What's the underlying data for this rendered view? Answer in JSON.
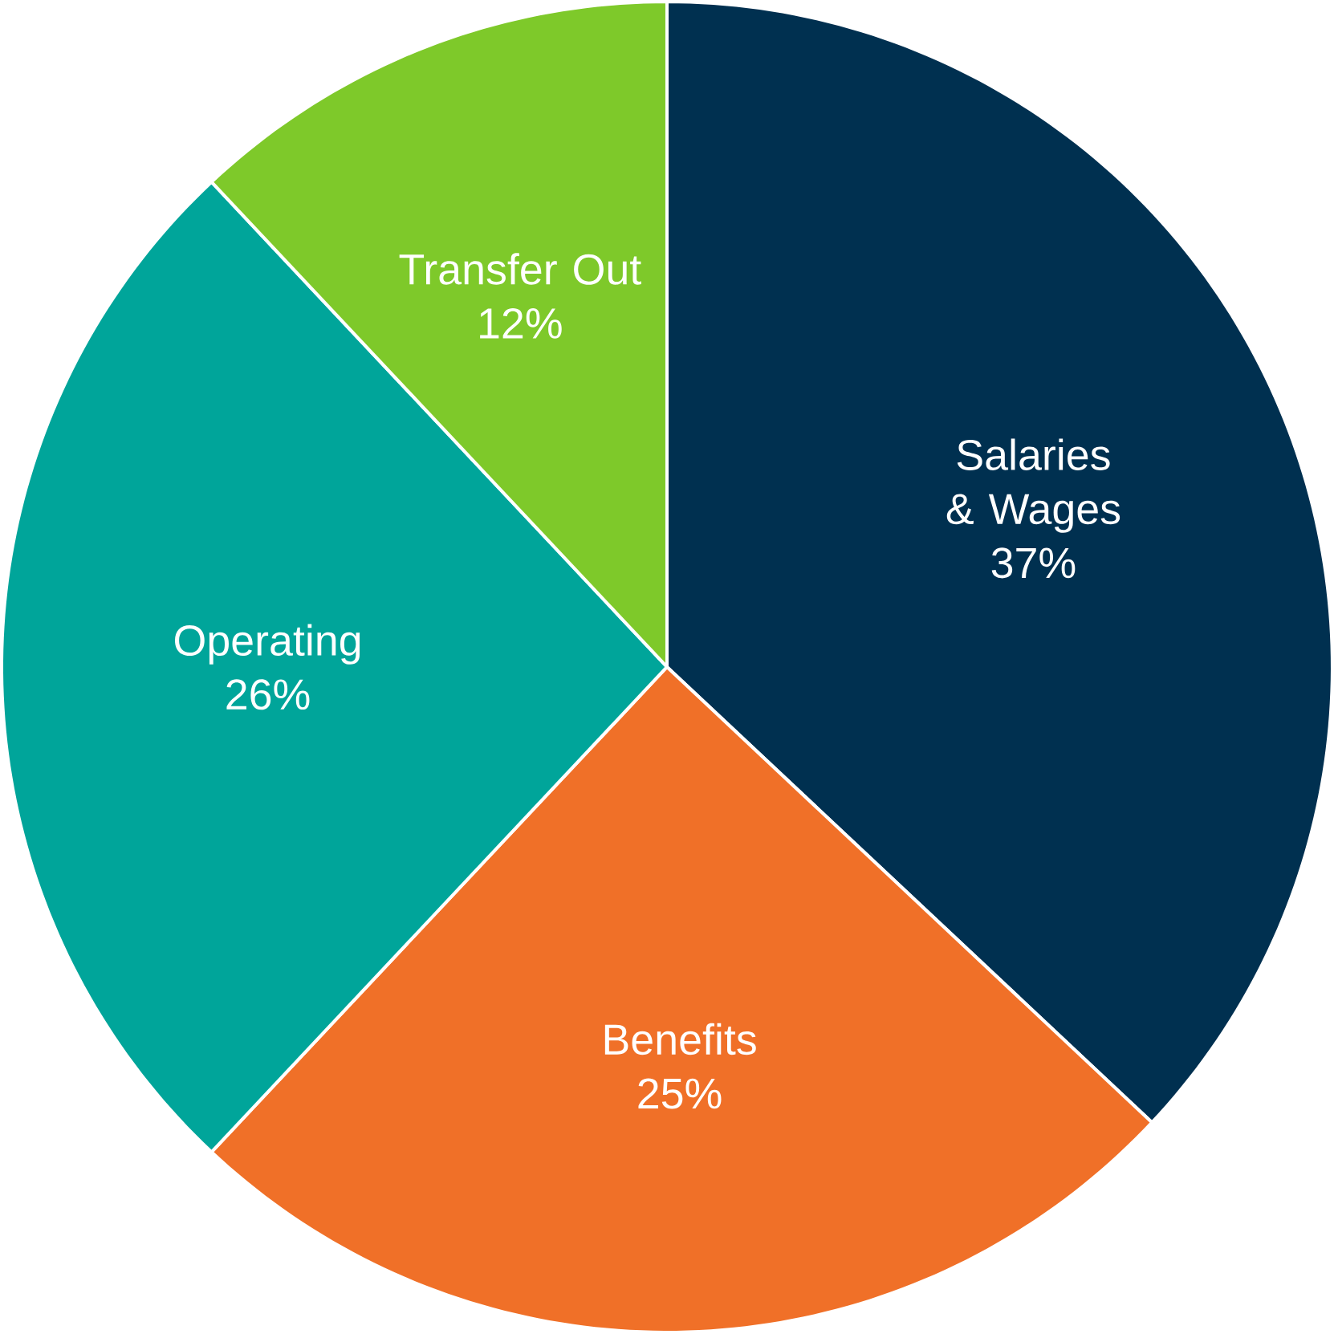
{
  "chart_data": {
    "type": "pie",
    "categories": [
      "Salaries & Wages",
      "Benefits",
      "Operating",
      "Transfer Out"
    ],
    "values": [
      37,
      25,
      26,
      12
    ],
    "value_labels": [
      "37%",
      "25%",
      "26%",
      "12%"
    ],
    "colors": [
      "#003050",
      "#f07028",
      "#00a59a",
      "#7ec92a"
    ]
  }
}
